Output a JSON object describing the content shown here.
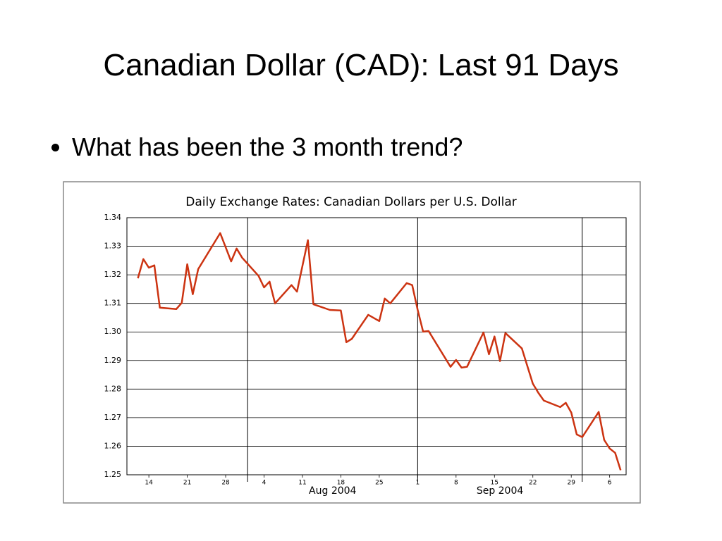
{
  "header": {
    "title": "Canadian Dollar (CAD): Last 91 Days"
  },
  "bullets": [
    "What has been the 3 month trend?"
  ],
  "chart_data": {
    "type": "line",
    "title": "Daily Exchange Rates: Canadian Dollars per U.S. Dollar",
    "color": "#cc3311",
    "grid": true,
    "xlim": [
      10,
      101
    ],
    "ylim": [
      1.25,
      1.34
    ],
    "yticks": [
      1.25,
      1.26,
      1.27,
      1.28,
      1.29,
      {
        "value": 1.3,
        "label": "1.30"
      },
      1.31,
      1.32,
      1.33,
      1.34
    ],
    "xticks": [
      14,
      21,
      28,
      {
        "value": 35,
        "label": "4"
      },
      {
        "value": 42,
        "label": "11"
      },
      {
        "value": 49,
        "label": "18"
      },
      {
        "value": 56,
        "label": "25"
      },
      {
        "value": 63,
        "label": "1"
      },
      {
        "value": 70,
        "label": "8"
      },
      {
        "value": 77,
        "label": "15"
      },
      {
        "value": 84,
        "label": "22"
      },
      {
        "value": 91,
        "label": "29"
      },
      {
        "value": 98,
        "label": "6"
      }
    ],
    "month_dividers": [
      32,
      63,
      93
    ],
    "month_labels": [
      {
        "label": "Aug 2004",
        "value": 47.5
      },
      {
        "label": "Sep 2004",
        "value": 78
      }
    ],
    "x": [
      12,
      13,
      14,
      15,
      16,
      19,
      20,
      21,
      22,
      23,
      27,
      29,
      30,
      31,
      34,
      35,
      36,
      37,
      40,
      41,
      43,
      44,
      47,
      49,
      50,
      51,
      54,
      56,
      57,
      58,
      61,
      62,
      63,
      64,
      65,
      69,
      70,
      71,
      72,
      75,
      76,
      77,
      78,
      79,
      82,
      83,
      84,
      85,
      86,
      89,
      90,
      91,
      92,
      93,
      96,
      97,
      98,
      99,
      100
    ],
    "values": [
      1.3188,
      1.3255,
      1.3225,
      1.3233,
      1.3085,
      1.308,
      1.3102,
      1.3237,
      1.3132,
      1.322,
      1.3346,
      1.3247,
      1.3292,
      1.326,
      1.3196,
      1.3156,
      1.3176,
      1.31,
      1.3164,
      1.3141,
      1.3321,
      1.3097,
      1.3077,
      1.3075,
      1.2964,
      1.2976,
      1.306,
      1.3038,
      1.3117,
      1.31,
      1.3171,
      1.3164,
      1.3077,
      1.3001,
      1.3003,
      1.2878,
      1.2902,
      1.2875,
      1.2878,
      1.2998,
      1.2922,
      1.2984,
      1.2898,
      1.2996,
      1.2942,
      1.288,
      1.2819,
      1.2787,
      1.276,
      1.2737,
      1.2752,
      1.2718,
      1.2641,
      1.2632,
      1.272,
      1.2622,
      1.2592,
      1.2577,
      1.2516
    ]
  }
}
